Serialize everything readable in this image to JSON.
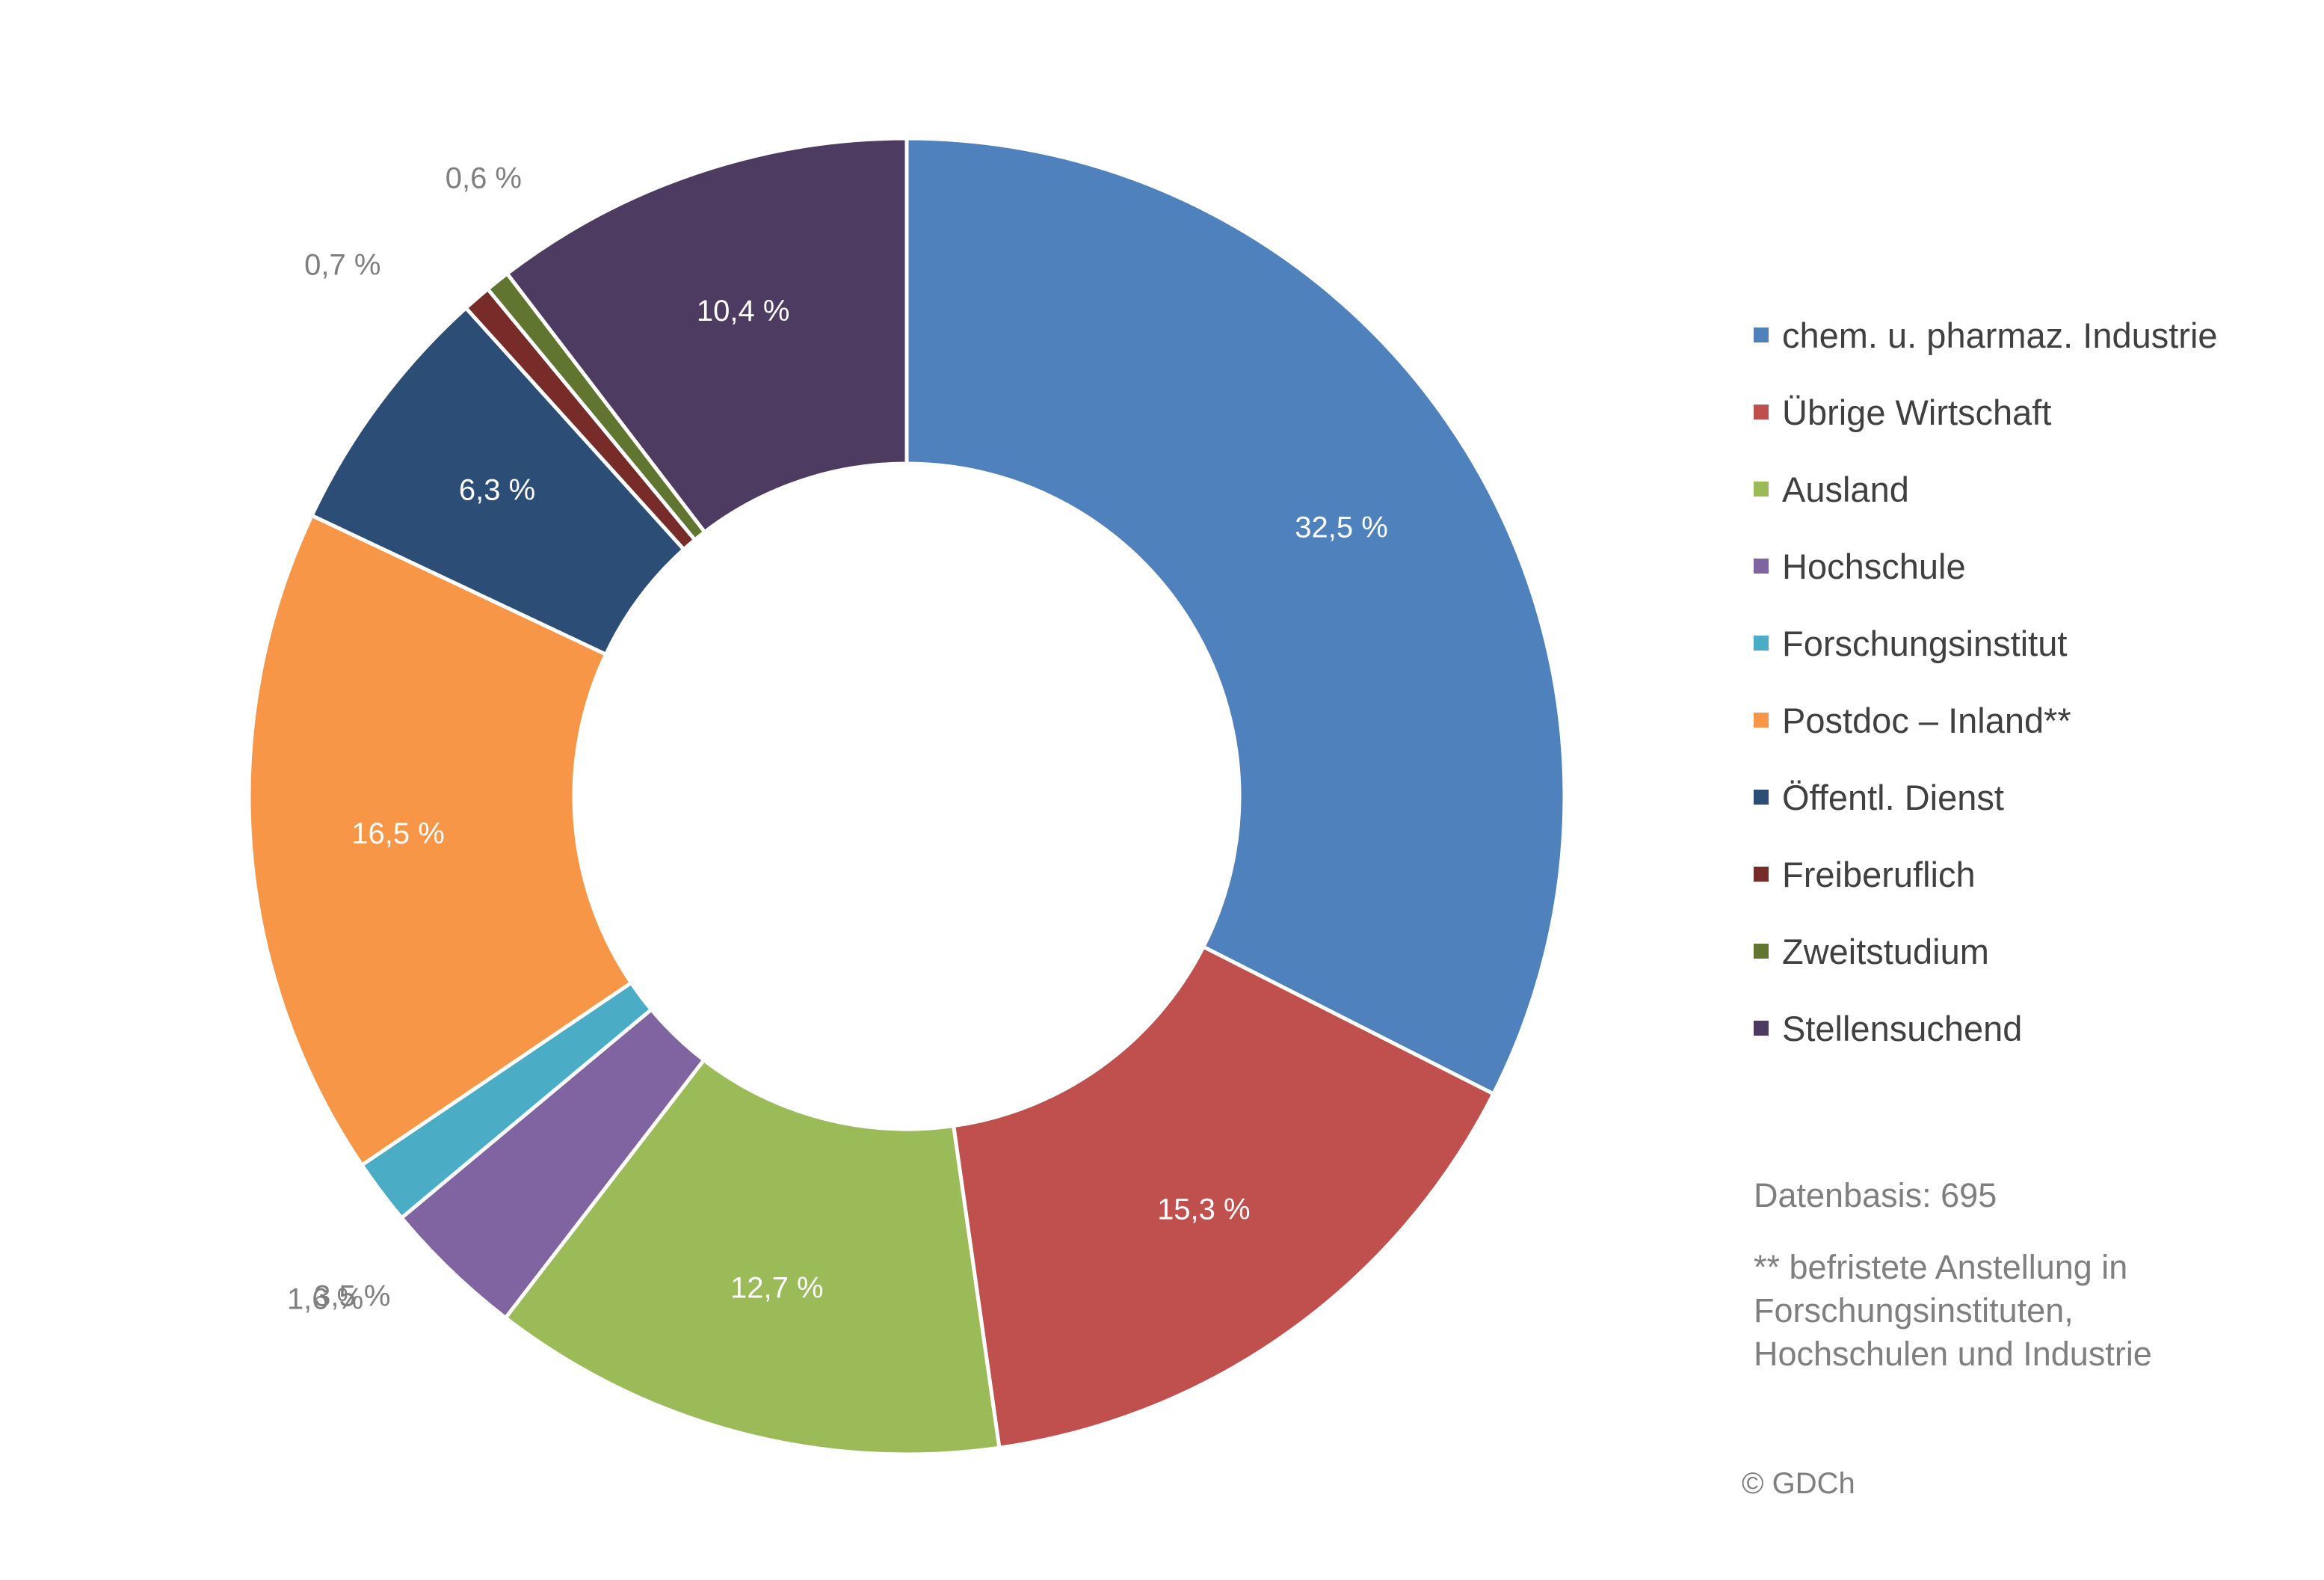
{
  "chart_data": {
    "type": "pie",
    "variant": "donut",
    "legend_position": "right",
    "categories": [
      "chem. u. pharmaz. Industrie",
      "Übrige Wirtschaft",
      "Ausland",
      "Hochschule",
      "Forschungsinstitut",
      "Postdoc – Inland**",
      "Öffentl. Dienst",
      "Freiberuflich",
      "Zweitstudium",
      "Stellensuchend"
    ],
    "values": [
      32.5,
      15.3,
      12.7,
      3.5,
      1.6,
      16.5,
      6.3,
      0.7,
      0.6,
      10.4
    ],
    "value_labels": [
      "32,5 %",
      "15,3 %",
      "12,7 %",
      "3,5 %",
      "1,6 %",
      "16,5 %",
      "6,3 %",
      "0,7 %",
      "0,6 %",
      "10,4 %"
    ],
    "colors": [
      "#4f81bd",
      "#c0504d",
      "#9bbb59",
      "#8064a2",
      "#4bacc6",
      "#f79646",
      "#2c4d75",
      "#772c2a",
      "#5f7530",
      "#4d3b62"
    ]
  },
  "notes": {
    "basis": "Datenbasis: 695",
    "footnote_lines": [
      "** befristete Anstellung in",
      "Forschungsinstituten,",
      "Hochschulen und Industrie"
    ],
    "copyright": "© GDCh"
  }
}
